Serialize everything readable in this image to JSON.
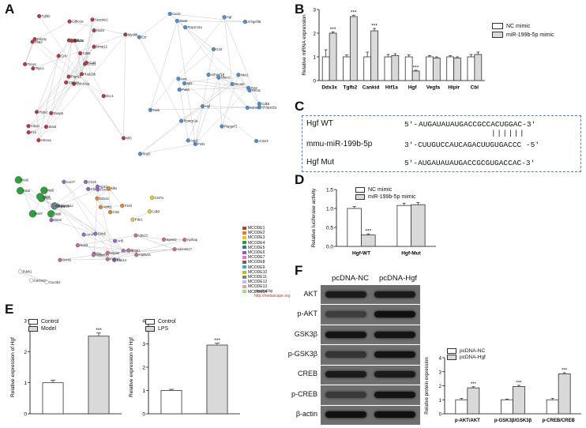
{
  "panel_letters": {
    "A": "A",
    "B": "B",
    "C": "C",
    "D": "D",
    "E": "E",
    "F": "F"
  },
  "colors": {
    "nc": "#ffffff",
    "treat": "#d9d9d9",
    "bar_stroke": "#333333",
    "network_green": "#2ca02c",
    "network_purple": "#9b59b6",
    "network_blue": "#4a90d9",
    "network_red": "#c0392b",
    "network_orange": "#e67e22",
    "network_yellow": "#f1c40f",
    "network_pink": "#e377c2"
  },
  "network": {
    "legend": [
      "MCODE1",
      "MCODE2",
      "MCODE3",
      "MCODE4",
      "MCODE5",
      "MCODE6",
      "MCODE7",
      "MCODE8",
      "MCODE9",
      "MCODE10",
      "MCODE11",
      "MCODE12",
      "MCODE13",
      "MCODE14"
    ],
    "credit_line1": "created by",
    "credit_line2": "http://metascape.org",
    "clusters": [
      {
        "color": "red",
        "nodes": [
          "Cdc42ep",
          "Wapl",
          "Ptpn11",
          "Ctbp1",
          "Ccnt1",
          "Dusp6",
          "Serpine1",
          "A2m",
          "Nsd3",
          "Rad23b",
          "Tgfb2",
          "Klf3",
          "Tspc1",
          "Myd88",
          "Ctnna1",
          "Mmp12",
          "Hmox1",
          "Cxcl1",
          "Cdk6",
          "Ptgs2",
          "Crh",
          "Il1b",
          "Stat3",
          "Ddx3x",
          "Cul3",
          "Dcc1",
          "Ddx3y",
          "Cdkn1a",
          "Timp1"
        ]
      },
      {
        "color": "blue",
        "nodes": [
          "Cd4",
          "Stat4",
          "Arhgef38",
          "Ezr",
          "Cxcl2",
          "Arhgef19",
          "Pak6",
          "Frs2",
          "Ppp1r12a",
          "Kdm5",
          "Fstl1",
          "Nfam1",
          "Antxr2",
          "Igf2",
          "Rapgef3",
          "Rhot1",
          "Cdk8",
          "Nkx2",
          "Rnd3",
          "Hgf",
          "Ppargc1a",
          "Nrcam",
          "Aqp1",
          "Agt",
          "Arnt",
          "Sh3pxd2a",
          "Tank"
        ]
      },
      {
        "color": "green",
        "nodes": [
          "Hist1",
          "Hist2",
          "Hist3",
          "Hist4",
          "Hist5",
          "Hist6",
          "Hist7",
          "Hist8"
        ]
      },
      {
        "color": "purple",
        "nodes": [
          "Gnb5",
          "Chst6",
          "Ddx6",
          "Clock",
          "Fbxo32",
          "Cacna1c",
          "Arntl",
          "Pim1",
          "Cxcr7",
          "Rab12",
          "Arl6",
          "Ifit1",
          "Arhgap26",
          "Nos1"
        ]
      },
      {
        "color": "orange",
        "nodes": [
          "Ctss",
          "Ddx21",
          "Nhs",
          "Fzd4",
          "Adrb1"
        ]
      },
      {
        "color": "yellow",
        "nodes": [
          "Gnrh1",
          "Cdk5",
          "Pde1"
        ]
      },
      {
        "color": "pink",
        "nodes": [
          "Atp6v0c",
          "Adamts5",
          "Adamts17",
          "Magi1",
          "Nos3",
          "Vps13",
          "Sgms2",
          "Gcnt1",
          "Aprkap",
          "Fgfbp1",
          "Hspa2"
        ]
      },
      {
        "color": "white",
        "nodes": [
          "Pdzk1",
          "Cacna1s",
          "Cacnb2"
        ]
      }
    ]
  },
  "chart_data": [
    {
      "panel": "B",
      "type": "bar",
      "ylabel": "Relative mRNA expression",
      "ylim": [
        0,
        3
      ],
      "yticks": [
        0,
        1,
        2,
        3
      ],
      "categories": [
        "Ddx3x",
        "Tgfb2",
        "Cankid",
        "Hif1a",
        "Hgf",
        "Vegfa",
        "Hipir",
        "Cbl"
      ],
      "legend": [
        "NC mimic",
        "miR-199b-5p mimic"
      ],
      "series": [
        {
          "name": "NC mimic",
          "values": [
            1.0,
            1.0,
            1.0,
            1.0,
            1.0,
            1.0,
            1.0,
            1.0
          ],
          "errors": [
            0.3,
            0.08,
            0.2,
            0.1,
            0.08,
            0.05,
            0.05,
            0.1
          ]
        },
        {
          "name": "miR-199b-5p mimic",
          "values": [
            2.0,
            2.7,
            2.1,
            1.05,
            0.4,
            0.95,
            0.95,
            1.1
          ],
          "errors": [
            0.05,
            0.06,
            0.1,
            0.08,
            0.04,
            0.05,
            0.05,
            0.1
          ]
        }
      ],
      "significance": [
        "***",
        "***",
        "***",
        "",
        "***",
        "",
        "",
        ""
      ]
    },
    {
      "panel": "D",
      "type": "bar",
      "ylabel": "Relative luciferase activity",
      "ylim": [
        0,
        1.5
      ],
      "yticks": [
        0.0,
        0.5,
        1.0,
        1.5
      ],
      "categories": [
        "Hgf-WT",
        "Hgf-Mut"
      ],
      "legend": [
        "NC mimic",
        "miR-199b-5p mimic"
      ],
      "series": [
        {
          "name": "NC mimic",
          "values": [
            1.0,
            1.08
          ],
          "errors": [
            0.05,
            0.06
          ]
        },
        {
          "name": "miR-199b-5p mimic",
          "values": [
            0.3,
            1.1
          ],
          "errors": [
            0.03,
            0.06
          ]
        }
      ],
      "significance": [
        "***",
        ""
      ]
    },
    {
      "panel": "E1",
      "type": "bar",
      "ylabel": "Relative expression of Hgf",
      "ylim": [
        0,
        3
      ],
      "yticks": [
        0,
        1,
        2,
        3
      ],
      "categories": [
        "Control",
        "Model"
      ],
      "legend": [
        "Control",
        "Model"
      ],
      "values": [
        1.0,
        2.5
      ],
      "errors": [
        0.08,
        0.1
      ],
      "significance": [
        "",
        "***"
      ]
    },
    {
      "panel": "E2",
      "type": "bar",
      "ylabel": "Relative expression of Hgf",
      "ylim": [
        0,
        4
      ],
      "yticks": [
        0,
        1,
        2,
        3,
        4
      ],
      "categories": [
        "Control",
        "LPS"
      ],
      "legend": [
        "Control",
        "LPS"
      ],
      "values": [
        1.0,
        2.95
      ],
      "errors": [
        0.05,
        0.08
      ],
      "significance": [
        "",
        "***"
      ]
    },
    {
      "panel": "F",
      "type": "bar",
      "ylabel": "Relative protein expression",
      "ylim": [
        0,
        4
      ],
      "yticks": [
        0,
        1,
        2,
        3,
        4
      ],
      "categories": [
        "p-AKT/AKT",
        "p-GSK3β/GSK3β",
        "p-CREB/CREB"
      ],
      "legend": [
        "pcDNA-NC",
        "pcDNA-Hgf"
      ],
      "series": [
        {
          "name": "pcDNA-NC",
          "values": [
            1.0,
            1.0,
            1.0
          ],
          "errors": [
            0.1,
            0.05,
            0.1
          ]
        },
        {
          "name": "pcDNA-Hgf",
          "values": [
            1.85,
            1.95,
            2.85
          ],
          "errors": [
            0.08,
            0.08,
            0.08
          ]
        }
      ],
      "significance": [
        "***",
        "***",
        "***"
      ]
    }
  ],
  "sequences": {
    "wt_label": "Hgf  WT",
    "wt_prime5": "5'-",
    "wt_seq": "AUGAUAUAUGACCGCCACUGGAC-3'",
    "mir_label": "mmu-miR-199b-5p",
    "mir_seq": "3'-CUUGUCCAUCAGACUUGUGACCC -5'",
    "mut_label": "Hgf  Mut",
    "mut_seq": "5'-AUGAUAUAUGACCGCGUGACCAC-3'",
    "pairing": "||||||"
  },
  "western": {
    "conditions": [
      "pcDNA-NC",
      "pcDNA-Hgf"
    ],
    "rows": [
      "AKT",
      "p-AKT",
      "GSK3β",
      "p-GSK3β",
      "CREB",
      "p-CREB",
      "β-actin"
    ]
  }
}
